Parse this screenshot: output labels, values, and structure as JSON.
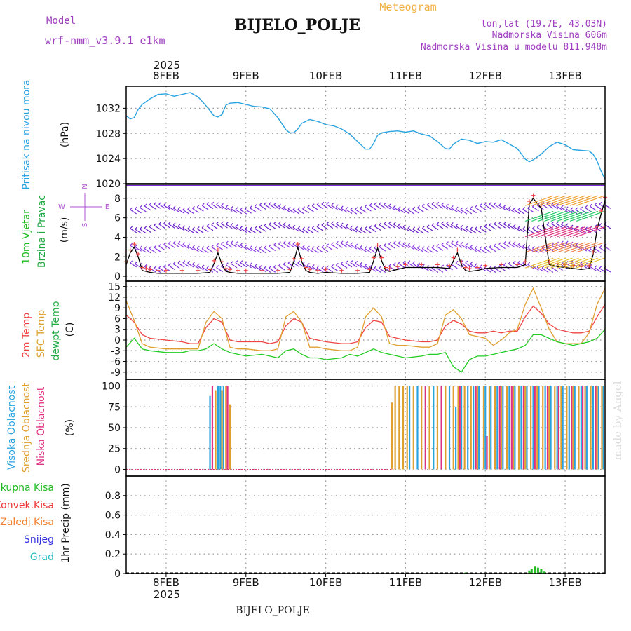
{
  "header": {
    "model_label": "Model",
    "model_name": "wrf-nmm_v3.9.1  e1km",
    "title": "BIJELO_POLJE",
    "product": "Meteogram",
    "lonlat": "lon,lat (19.7E, 43.03N)",
    "altitude": "Nadmorska Visina 606m",
    "model_altitude": "Nadmorska Visina u modelu 811.948m",
    "bottom_title": "BIJELO_POLJE",
    "watermark": "made by Angel",
    "year": "2025"
  },
  "colors": {
    "pressure": "#29a3e0",
    "wind_label": "#22bb22",
    "wind_label2": "#22aa44",
    "compass": "#b050d0",
    "model_text": "#a040c0",
    "product_text": "#f0b040",
    "t2m": "#ee4444",
    "sfc": "#e0a030",
    "dewpt": "#22cc22",
    "cloud_high": "#29a3e0",
    "cloud_mid": "#e0a030",
    "cloud_low": "#e03080",
    "precip_total": "#22bb22",
    "precip_conv": "#ee3333",
    "precip_frz": "#f08030",
    "precip_snow": "#3333dd",
    "precip_hail": "#22bbbb",
    "grid": "#999999"
  },
  "time_axis": {
    "start_day": 7.5,
    "end_day": 13.5,
    "ticks": [
      {
        "day": 8,
        "label": "8FEB"
      },
      {
        "day": 9,
        "label": "9FEB"
      },
      {
        "day": 10,
        "label": "10FEB"
      },
      {
        "day": 11,
        "label": "11FEB"
      },
      {
        "day": 12,
        "label": "12FEB"
      },
      {
        "day": 13,
        "label": "13FEB"
      }
    ]
  },
  "chart_data": [
    {
      "type": "line",
      "panel": "pressure",
      "ylabel": "(hPa)",
      "side_labels": [
        "Pritisak na nivou mora"
      ],
      "ylim": [
        1020,
        1035.5
      ],
      "yticks": [
        1020,
        1024,
        1028,
        1032
      ],
      "series": [
        {
          "name": "Pritisak na nivou mora",
          "x": [
            7.5,
            7.55,
            7.6,
            7.65,
            7.7,
            7.8,
            7.9,
            8.0,
            8.1,
            8.2,
            8.3,
            8.4,
            8.5,
            8.6,
            8.65,
            8.7,
            8.75,
            8.8,
            8.9,
            9.0,
            9.1,
            9.2,
            9.3,
            9.4,
            9.5,
            9.55,
            9.6,
            9.65,
            9.7,
            9.8,
            9.9,
            10.0,
            10.1,
            10.2,
            10.3,
            10.4,
            10.5,
            10.55,
            10.6,
            10.65,
            10.7,
            10.8,
            10.9,
            11.0,
            11.1,
            11.2,
            11.3,
            11.4,
            11.5,
            11.55,
            11.6,
            11.7,
            11.8,
            11.9,
            12.0,
            12.1,
            12.2,
            12.3,
            12.4,
            12.5,
            12.55,
            12.6,
            12.7,
            12.8,
            12.9,
            13.0,
            13.1,
            13.2,
            13.3,
            13.35,
            13.4,
            13.45,
            13.5
          ],
          "values": [
            1030.8,
            1030.3,
            1030.5,
            1031.8,
            1032.6,
            1033.5,
            1034.2,
            1034.3,
            1033.9,
            1034.2,
            1034.5,
            1033.8,
            1032.4,
            1030.8,
            1030.6,
            1031.0,
            1032.5,
            1032.8,
            1032.9,
            1032.6,
            1032.3,
            1032.2,
            1031.9,
            1030.5,
            1028.6,
            1028.1,
            1028.1,
            1028.7,
            1029.6,
            1030.2,
            1029.9,
            1029.4,
            1029.2,
            1028.7,
            1027.9,
            1026.7,
            1025.5,
            1025.5,
            1026.4,
            1027.7,
            1028.1,
            1028.3,
            1028.4,
            1028.2,
            1028.4,
            1027.9,
            1027.6,
            1026.7,
            1025.6,
            1025.5,
            1026.3,
            1027.1,
            1026.9,
            1026.4,
            1026.7,
            1026.6,
            1027.0,
            1026.3,
            1025.6,
            1023.9,
            1023.5,
            1023.8,
            1024.7,
            1025.9,
            1026.6,
            1026.2,
            1025.4,
            1025.3,
            1025.2,
            1024.7,
            1023.6,
            1022.0,
            1020.7
          ]
        }
      ]
    },
    {
      "type": "line",
      "panel": "wind",
      "ylabel": "(m/s)",
      "side_labels": [
        "10m Vjetar",
        "Brzina i Pravac"
      ],
      "compass": {
        "top": "N",
        "left": "W",
        "right": "E",
        "bottom": "S"
      },
      "ylim": [
        -0.5,
        9.5
      ],
      "yticks": [
        0,
        2,
        4,
        6,
        8
      ],
      "series": [
        {
          "name": "Brzina",
          "x": [
            7.5,
            7.55,
            7.6,
            7.65,
            7.7,
            7.75,
            7.8,
            7.9,
            8.0,
            8.2,
            8.4,
            8.55,
            8.6,
            8.65,
            8.7,
            8.75,
            8.8,
            8.9,
            9.0,
            9.2,
            9.4,
            9.55,
            9.6,
            9.65,
            9.7,
            9.75,
            9.8,
            9.9,
            10.0,
            10.2,
            10.4,
            10.55,
            10.6,
            10.65,
            10.7,
            10.75,
            10.8,
            10.9,
            11.0,
            11.2,
            11.4,
            11.55,
            11.6,
            11.65,
            11.7,
            11.75,
            11.8,
            11.9,
            12.0,
            12.2,
            12.4,
            12.5,
            12.55,
            12.6,
            12.7,
            12.8,
            12.9,
            13.0,
            13.1,
            13.2,
            13.3,
            13.35,
            13.4,
            13.45,
            13.5
          ],
          "values": [
            1.2,
            2.4,
            3.0,
            2.0,
            0.6,
            0.5,
            0.4,
            0.3,
            0.3,
            0.3,
            0.3,
            0.4,
            1.3,
            2.4,
            1.2,
            0.5,
            0.4,
            0.3,
            0.3,
            0.3,
            0.3,
            0.4,
            1.5,
            3.0,
            1.5,
            0.6,
            0.4,
            0.3,
            0.4,
            0.3,
            0.3,
            0.4,
            1.6,
            2.9,
            1.6,
            0.6,
            0.5,
            0.7,
            0.9,
            0.9,
            0.9,
            0.8,
            1.6,
            2.4,
            1.2,
            0.6,
            0.5,
            0.6,
            0.8,
            0.9,
            0.9,
            1.2,
            7.4,
            8.0,
            7.0,
            1.2,
            1.0,
            0.9,
            0.8,
            0.7,
            0.8,
            2.2,
            4.8,
            6.4,
            7.8
          ]
        }
      ]
    },
    {
      "type": "line",
      "panel": "temperature",
      "ylabel": "(C)",
      "side_labels": [
        "2m Temp",
        "SFC Temp",
        "dewpt Temp"
      ],
      "ylim": [
        -11,
        16.5
      ],
      "yticks": [
        -9,
        -6,
        -3,
        0,
        3,
        6,
        9,
        12,
        15
      ],
      "x": [
        7.5,
        7.6,
        7.7,
        7.8,
        8.0,
        8.2,
        8.3,
        8.4,
        8.5,
        8.6,
        8.7,
        8.8,
        8.9,
        9.0,
        9.2,
        9.3,
        9.4,
        9.5,
        9.6,
        9.7,
        9.8,
        9.9,
        10.0,
        10.2,
        10.3,
        10.4,
        10.5,
        10.6,
        10.7,
        10.8,
        10.9,
        11.0,
        11.2,
        11.3,
        11.4,
        11.5,
        11.6,
        11.7,
        11.8,
        11.9,
        12.0,
        12.1,
        12.2,
        12.3,
        12.4,
        12.5,
        12.6,
        12.7,
        12.8,
        12.9,
        13.0,
        13.1,
        13.2,
        13.3,
        13.4,
        13.5
      ],
      "series": [
        {
          "name": "2m Temp",
          "values": [
            7.0,
            5.0,
            1.5,
            0.5,
            0.0,
            -0.5,
            -1.0,
            -1.0,
            3.5,
            6.0,
            5.0,
            0.0,
            -0.5,
            -0.5,
            -0.5,
            -1.0,
            -0.5,
            4.0,
            6.0,
            5.0,
            0.5,
            0.0,
            -0.5,
            -1.0,
            -1.0,
            -0.5,
            3.5,
            5.5,
            5.0,
            1.0,
            0.5,
            0.0,
            -0.5,
            -0.5,
            0.0,
            4.0,
            5.5,
            4.5,
            2.5,
            2.0,
            2.0,
            2.5,
            2.0,
            2.5,
            2.5,
            6.5,
            9.5,
            7.5,
            4.5,
            3.0,
            2.5,
            2.0,
            2.0,
            2.5,
            6.5,
            10.0
          ]
        },
        {
          "name": "SFC Temp",
          "values": [
            11.0,
            5.5,
            -1.0,
            -2.0,
            -2.5,
            -2.5,
            -2.5,
            -2.5,
            5.0,
            8.0,
            6.0,
            -2.0,
            -2.5,
            -2.5,
            -3.0,
            -3.0,
            -2.5,
            6.5,
            8.0,
            5.0,
            -2.0,
            -2.0,
            -2.5,
            -3.0,
            -3.0,
            -2.0,
            6.5,
            9.0,
            6.5,
            -1.0,
            -1.5,
            -1.5,
            -2.0,
            -2.0,
            -1.0,
            7.0,
            8.5,
            6.0,
            1.5,
            1.0,
            0.5,
            -1.5,
            0.0,
            2.0,
            3.0,
            10.0,
            14.5,
            9.0,
            3.0,
            -0.5,
            -1.0,
            -1.0,
            -1.0,
            2.0,
            10.0,
            14.5
          ]
        },
        {
          "name": "dewpt Temp",
          "values": [
            -2.0,
            0.5,
            -2.5,
            -3.0,
            -3.5,
            -3.5,
            -3.0,
            -3.0,
            -2.5,
            -1.0,
            -2.5,
            -3.5,
            -4.0,
            -4.5,
            -4.0,
            -4.5,
            -5.0,
            -3.0,
            -2.5,
            -4.0,
            -5.0,
            -5.0,
            -5.5,
            -5.0,
            -4.0,
            -4.5,
            -3.5,
            -2.5,
            -3.5,
            -4.0,
            -4.5,
            -5.0,
            -4.5,
            -4.0,
            -4.0,
            -3.5,
            -7.5,
            -9.0,
            -5.5,
            -4.5,
            -4.5,
            -4.0,
            -3.5,
            -3.0,
            -2.5,
            -1.5,
            1.5,
            1.5,
            0.5,
            -0.5,
            -1.0,
            -1.5,
            -1.0,
            -0.5,
            0.5,
            3.0
          ]
        }
      ]
    },
    {
      "type": "bar",
      "panel": "clouds",
      "ylabel": "(%)",
      "side_labels": [
        "Visoka Oblacnost",
        "Srednja Oblacnost",
        "Niska Oblacnost"
      ],
      "ylim": [
        -8,
        108
      ],
      "yticks": [
        0,
        25,
        50,
        75,
        100
      ],
      "series": [
        {
          "name": "Visoka Oblacnost",
          "x": [
            8.55,
            8.65,
            8.68,
            8.72,
            11.05,
            11.15,
            11.25,
            11.35,
            11.45,
            11.55,
            11.63,
            11.7,
            11.78,
            11.85,
            11.92,
            12.0,
            12.07,
            12.15,
            12.22,
            12.3,
            12.37,
            12.45,
            12.52,
            12.6,
            12.67,
            12.75,
            12.82,
            12.9,
            12.97,
            13.05,
            13.12,
            13.2,
            13.27,
            13.35,
            13.42,
            13.48
          ],
          "values": [
            88,
            100,
            100,
            100,
            100,
            100,
            100,
            100,
            100,
            100,
            75,
            100,
            100,
            100,
            100,
            100,
            100,
            100,
            100,
            100,
            100,
            100,
            100,
            100,
            100,
            100,
            100,
            100,
            100,
            100,
            100,
            100,
            100,
            100,
            100,
            100
          ]
        },
        {
          "name": "Srednja Oblacnost",
          "x": [
            8.62,
            8.7,
            8.75,
            8.8,
            10.83,
            10.87,
            10.92,
            10.97,
            11.02,
            11.1,
            11.2,
            11.3,
            11.4,
            11.5,
            11.6,
            11.66,
            11.74,
            11.82,
            11.9,
            11.98,
            12.05,
            12.12,
            12.2,
            12.27,
            12.35,
            12.42,
            12.5,
            12.57,
            12.65,
            12.72,
            12.8,
            12.87,
            12.95,
            13.02,
            13.1,
            13.17,
            13.25,
            13.32,
            13.4,
            13.46
          ],
          "values": [
            95,
            95,
            100,
            78,
            80,
            100,
            100,
            100,
            100,
            100,
            100,
            100,
            100,
            100,
            100,
            100,
            100,
            100,
            100,
            100,
            100,
            100,
            100,
            100,
            100,
            100,
            100,
            100,
            100,
            100,
            100,
            100,
            100,
            100,
            100,
            100,
            100,
            100,
            100,
            100
          ]
        },
        {
          "name": "Niska Oblacnost",
          "x": [
            8.58,
            8.77,
            11.25,
            11.45,
            11.68,
            11.88,
            12.02,
            12.18,
            12.33,
            12.48,
            12.62,
            12.78,
            12.92,
            13.08,
            13.22,
            13.38
          ],
          "values": [
            100,
            100,
            100,
            100,
            100,
            100,
            40,
            100,
            100,
            100,
            100,
            100,
            100,
            100,
            100,
            100
          ]
        }
      ]
    },
    {
      "type": "bar",
      "panel": "precip",
      "ylabel": "1hr Precip (mm)",
      "side_labels": [
        "Ukupna Kisa",
        "Konvek.Kisa",
        "Zaledj.Kisa",
        "Snijeg",
        "Grad"
      ],
      "ylim": [
        0,
        1.0
      ],
      "yticks": [
        0,
        0.2,
        0.4,
        0.6,
        0.8
      ],
      "series": [
        {
          "name": "Ukupna Kisa",
          "x": [
            11.75,
            12.55,
            12.58,
            12.62,
            12.66,
            12.7,
            12.74
          ],
          "values": [
            0.01,
            0.03,
            0.05,
            0.07,
            0.06,
            0.05,
            0.02
          ]
        },
        {
          "name": "Konvek.Kisa",
          "x": [
            12.58
          ],
          "values": [
            0.005
          ]
        },
        {
          "name": "Zaledj.Kisa",
          "x": [],
          "values": []
        },
        {
          "name": "Snijeg",
          "x": [],
          "values": []
        },
        {
          "name": "Grad",
          "x": [],
          "values": []
        }
      ]
    }
  ]
}
